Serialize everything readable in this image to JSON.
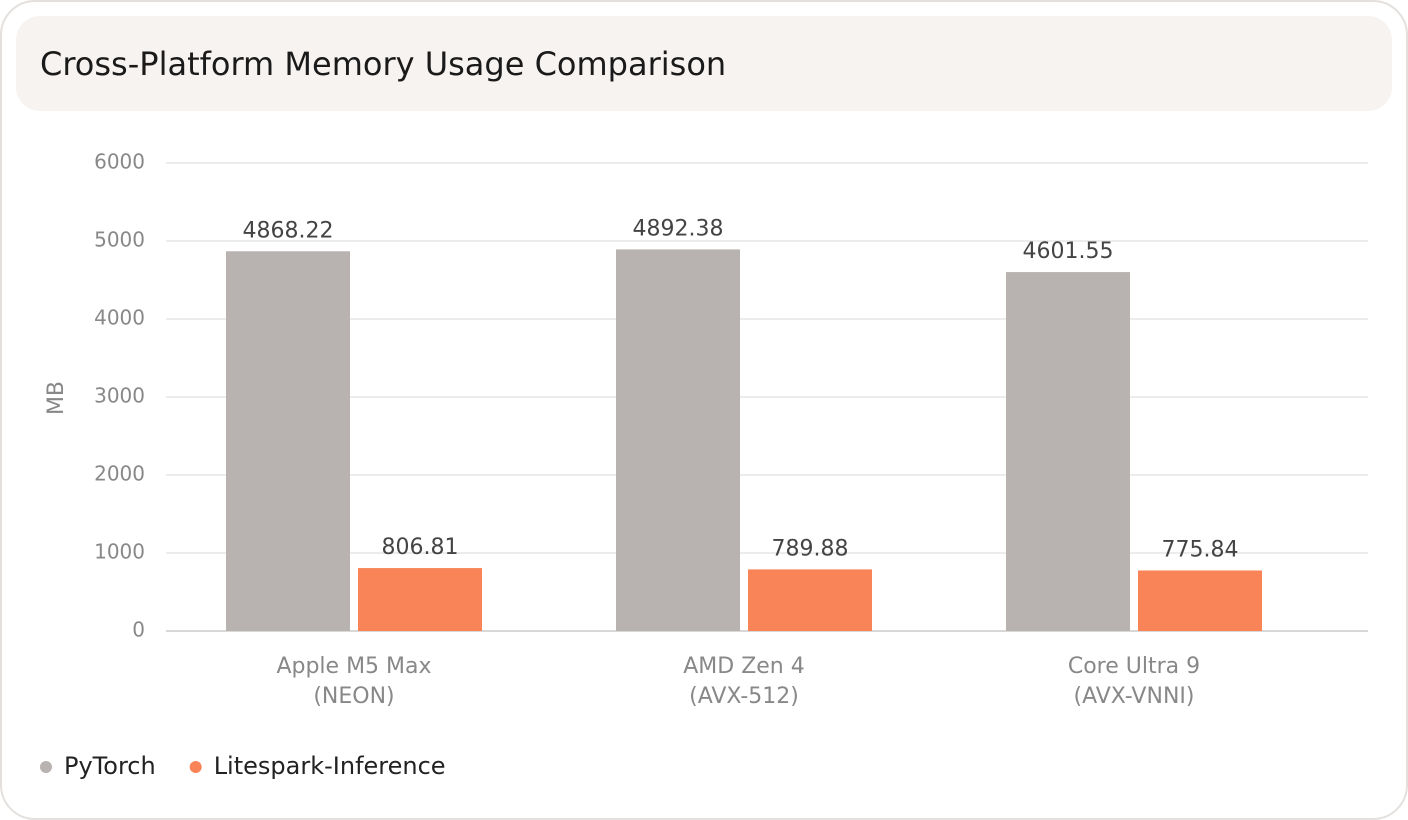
{
  "chart_data": {
    "type": "bar",
    "title": "Cross-Platform Memory Usage Comparison",
    "y_label": "MB",
    "categories": [
      [
        "Apple M5 Max",
        "(NEON)"
      ],
      [
        "AMD Zen 4",
        "(AVX-512)"
      ],
      [
        "Core Ultra 9",
        "(AVX-VNNI)"
      ]
    ],
    "series": [
      {
        "name": "PyTorch",
        "color": "#b8b3b0",
        "values": [
          4868.22,
          4892.38,
          4601.55
        ]
      },
      {
        "name": "Litespark-Inference",
        "color": "#f98458",
        "values": [
          806.81,
          789.88,
          775.84
        ]
      }
    ],
    "ylim": [
      0,
      6000
    ],
    "yticks": [
      0,
      1000,
      2000,
      3000,
      4000,
      5000,
      6000
    ],
    "grid": true,
    "legend": "bottom-left"
  }
}
